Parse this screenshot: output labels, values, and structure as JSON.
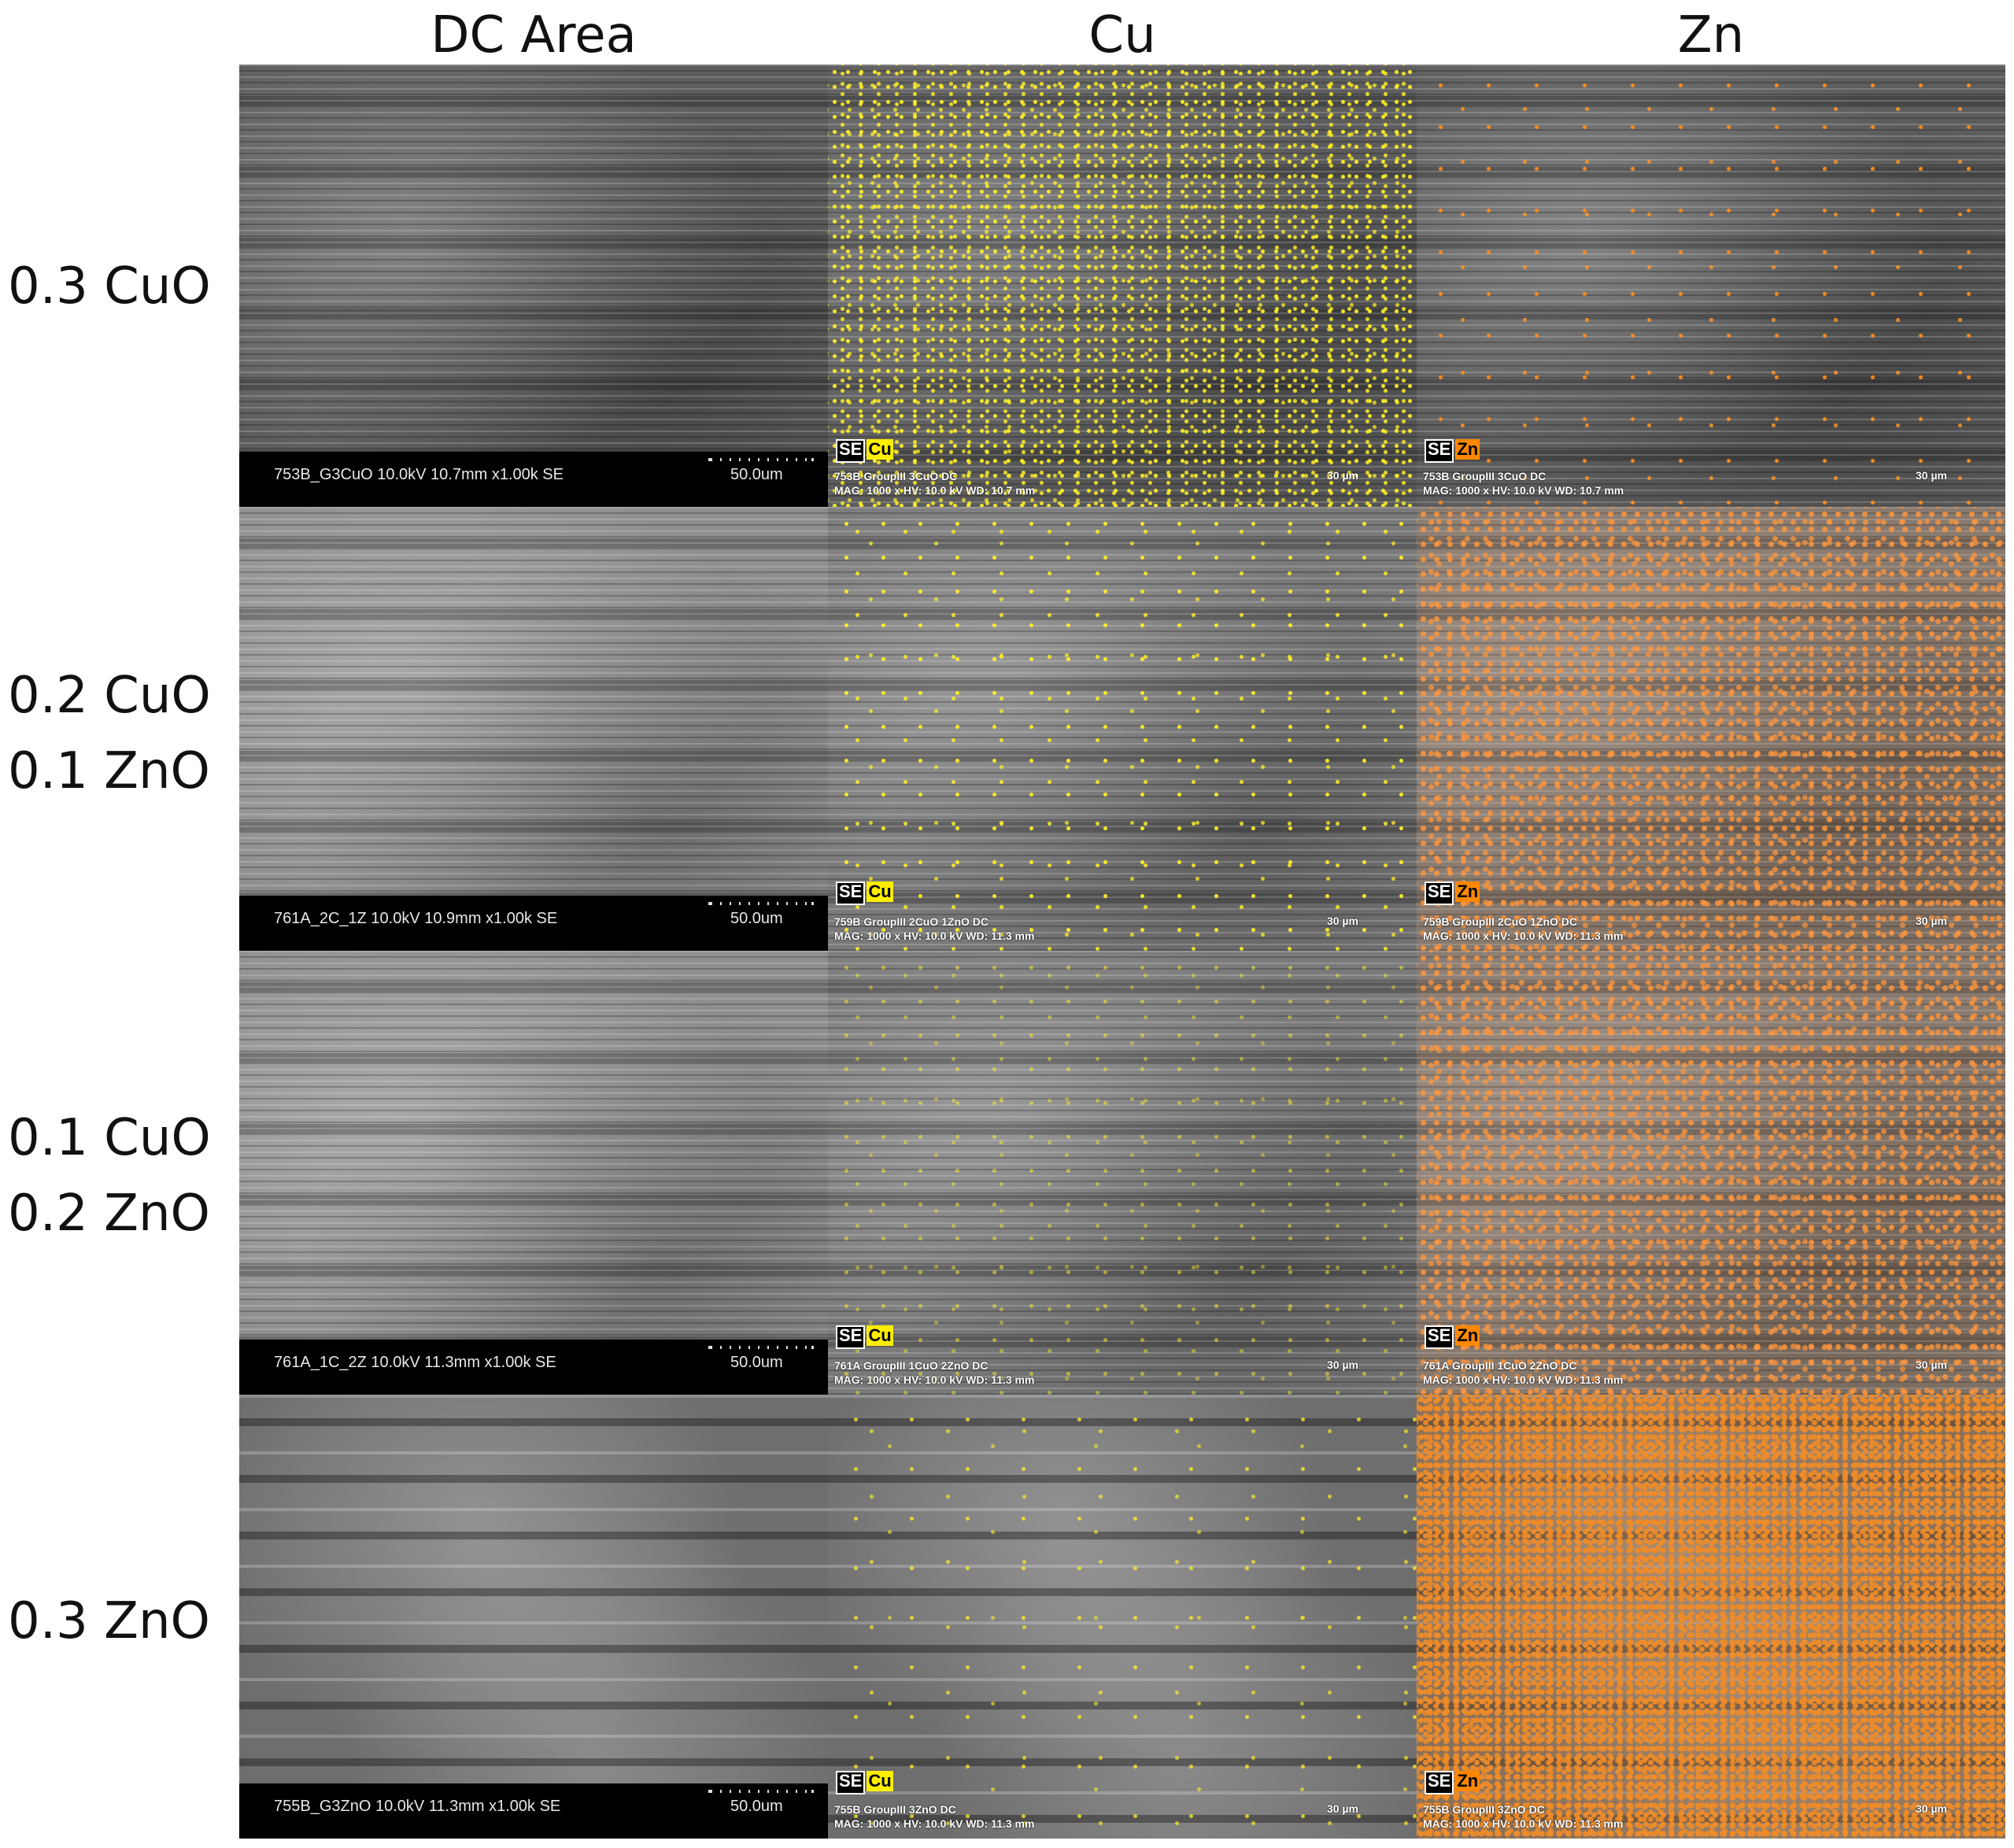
{
  "headers": {
    "col1": "DC Area",
    "col2": "Cu",
    "col3": "Zn"
  },
  "rows": [
    {
      "label_line1": "0.3 CuO",
      "label_line2": "",
      "sem_id": "753B_G3CuO 10.0kV 10.7mm x1.00k SE",
      "sem_scale": "50.0um",
      "cu_line1": "753B GroupIII 3CuO DC",
      "cu_line2": "MAG: 1000 x  HV: 10.0 kV  WD: 10.7 mm",
      "cu_scale": "30 µm",
      "zn_line1": "753B GroupIII 3CuO DC",
      "zn_line2": "MAG: 1000 x  HV: 10.0 kV  WD: 10.7 mm",
      "zn_scale": "30 µm"
    },
    {
      "label_line1": "0.2 CuO",
      "label_line2": "0.1 ZnO",
      "sem_id": "761A_2C_1Z 10.0kV 10.9mm x1.00k SE",
      "sem_scale": "50.0um",
      "cu_line1": "759B GroupIII 2CuO 1ZnO DC",
      "cu_line2": "MAG: 1000 x  HV: 10.0 kV  WD: 11.3 mm",
      "cu_scale": "30 µm",
      "zn_line1": "759B GroupIII 2CuO 1ZnO DC",
      "zn_line2": "MAG: 1000 x  HV: 10.0 kV  WD: 11.3 mm",
      "zn_scale": "30 µm"
    },
    {
      "label_line1": "0.1 CuO",
      "label_line2": "0.2 ZnO",
      "sem_id": "761A_1C_2Z 10.0kV 11.3mm x1.00k SE",
      "sem_scale": "50.0um",
      "cu_line1": "761A GroupIII 1CuO 2ZnO DC",
      "cu_line2": "MAG: 1000 x  HV: 10.0 kV  WD: 11.3 mm",
      "cu_scale": "30 µm",
      "zn_line1": "761A GroupIII 1CuO 2ZnO DC",
      "zn_line2": "MAG: 1000 x  HV: 10.0 kV  WD: 11.3 mm",
      "zn_scale": "30 µm"
    },
    {
      "label_line1": "0.3 ZnO",
      "label_line2": "",
      "sem_id": "755B_G3ZnO 10.0kV 11.3mm x1.00k SE",
      "sem_scale": "50.0um",
      "cu_line1": "755B GroupIII 3ZnO DC",
      "cu_line2": "MAG: 1000 x  HV: 10.0 kV  WD: 11.3 mm",
      "cu_scale": "30 µm",
      "zn_line1": "755B GroupIII 3ZnO DC",
      "zn_line2": "MAG: 1000 x  HV: 10.0 kV  WD: 11.3 mm",
      "zn_scale": "30 µm"
    }
  ],
  "legend": {
    "se": "SE",
    "cu": "Cu",
    "zn": "Zn"
  },
  "colors": {
    "cu_map": "#ffee00",
    "zn_map": "#ff8800"
  }
}
